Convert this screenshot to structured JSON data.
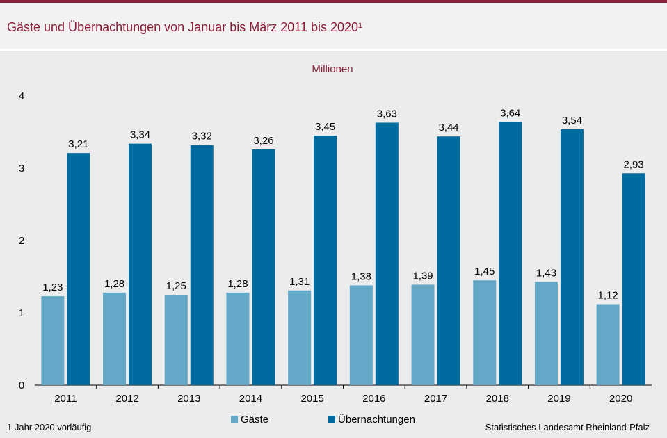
{
  "title": "Gäste und Übernachtungen von Januar bis März 2011 bis 2020¹",
  "footnote": "1 Jahr 2020 vorläufig",
  "source": "Statistisches Landesamt  Rheinland-Pfalz",
  "colors": {
    "accent": "#8a1d37",
    "gaeste": "#64a8c8",
    "uebernachtungen": "#006b9e"
  },
  "chart_data": {
    "type": "bar",
    "ylabel": "Millionen",
    "ylim": [
      0,
      4
    ],
    "yticks": [
      "0",
      "1",
      "2",
      "3",
      "4"
    ],
    "categories": [
      "2011",
      "2012",
      "2013",
      "2014",
      "2015",
      "2016",
      "2017",
      "2018",
      "2019",
      "2020"
    ],
    "series": [
      {
        "name": "Gäste",
        "values": [
          1.23,
          1.28,
          1.25,
          1.28,
          1.31,
          1.38,
          1.39,
          1.45,
          1.43,
          1.12
        ],
        "labels": [
          "1,23",
          "1,28",
          "1,25",
          "1,28",
          "1,31",
          "1,38",
          "1,39",
          "1,45",
          "1,43",
          "1,12"
        ]
      },
      {
        "name": "Übernachtungen",
        "values": [
          3.21,
          3.34,
          3.32,
          3.26,
          3.45,
          3.63,
          3.44,
          3.64,
          3.54,
          2.93
        ],
        "labels": [
          "3,21",
          "3,34",
          "3,32",
          "3,26",
          "3,45",
          "3,63",
          "3,44",
          "3,64",
          "3,54",
          "2,93"
        ]
      }
    ],
    "grid": false,
    "legend_position": "bottom-center"
  }
}
